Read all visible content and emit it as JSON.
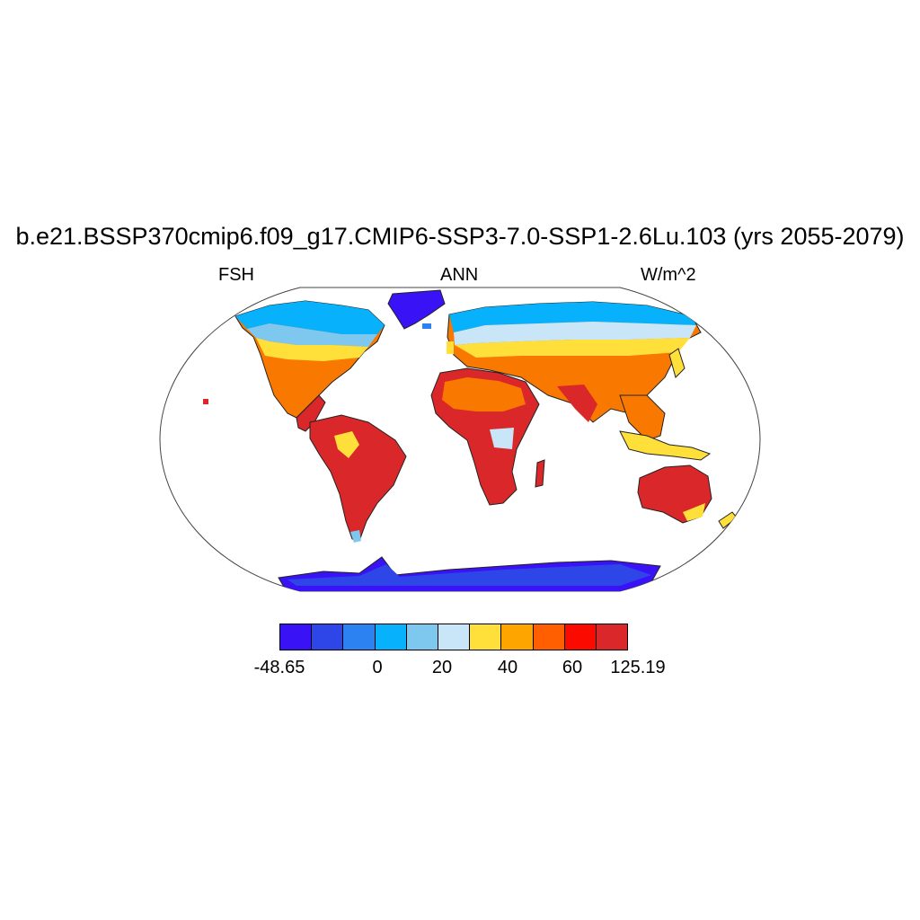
{
  "title": "b.e21.BSSP370cmip6.f09_g17.CMIP6-SSP3-7.0-SSP1-2.6Lu.103 (yrs 2055-2079)",
  "subtitle_left": "FSH",
  "subtitle_center": "ANN",
  "subtitle_right": "W/m^2",
  "colorbar": {
    "colors": [
      "#3a12f6",
      "#2e46e8",
      "#2b82f0",
      "#07b1fb",
      "#7ec8f0",
      "#c8e6f7",
      "#ffdf3a",
      "#ffa500",
      "#ff5f00",
      "#fb0a00",
      "#d9272a"
    ],
    "labels": [
      "-48.65",
      "0",
      "20",
      "40",
      "60",
      "125.19"
    ]
  }
}
